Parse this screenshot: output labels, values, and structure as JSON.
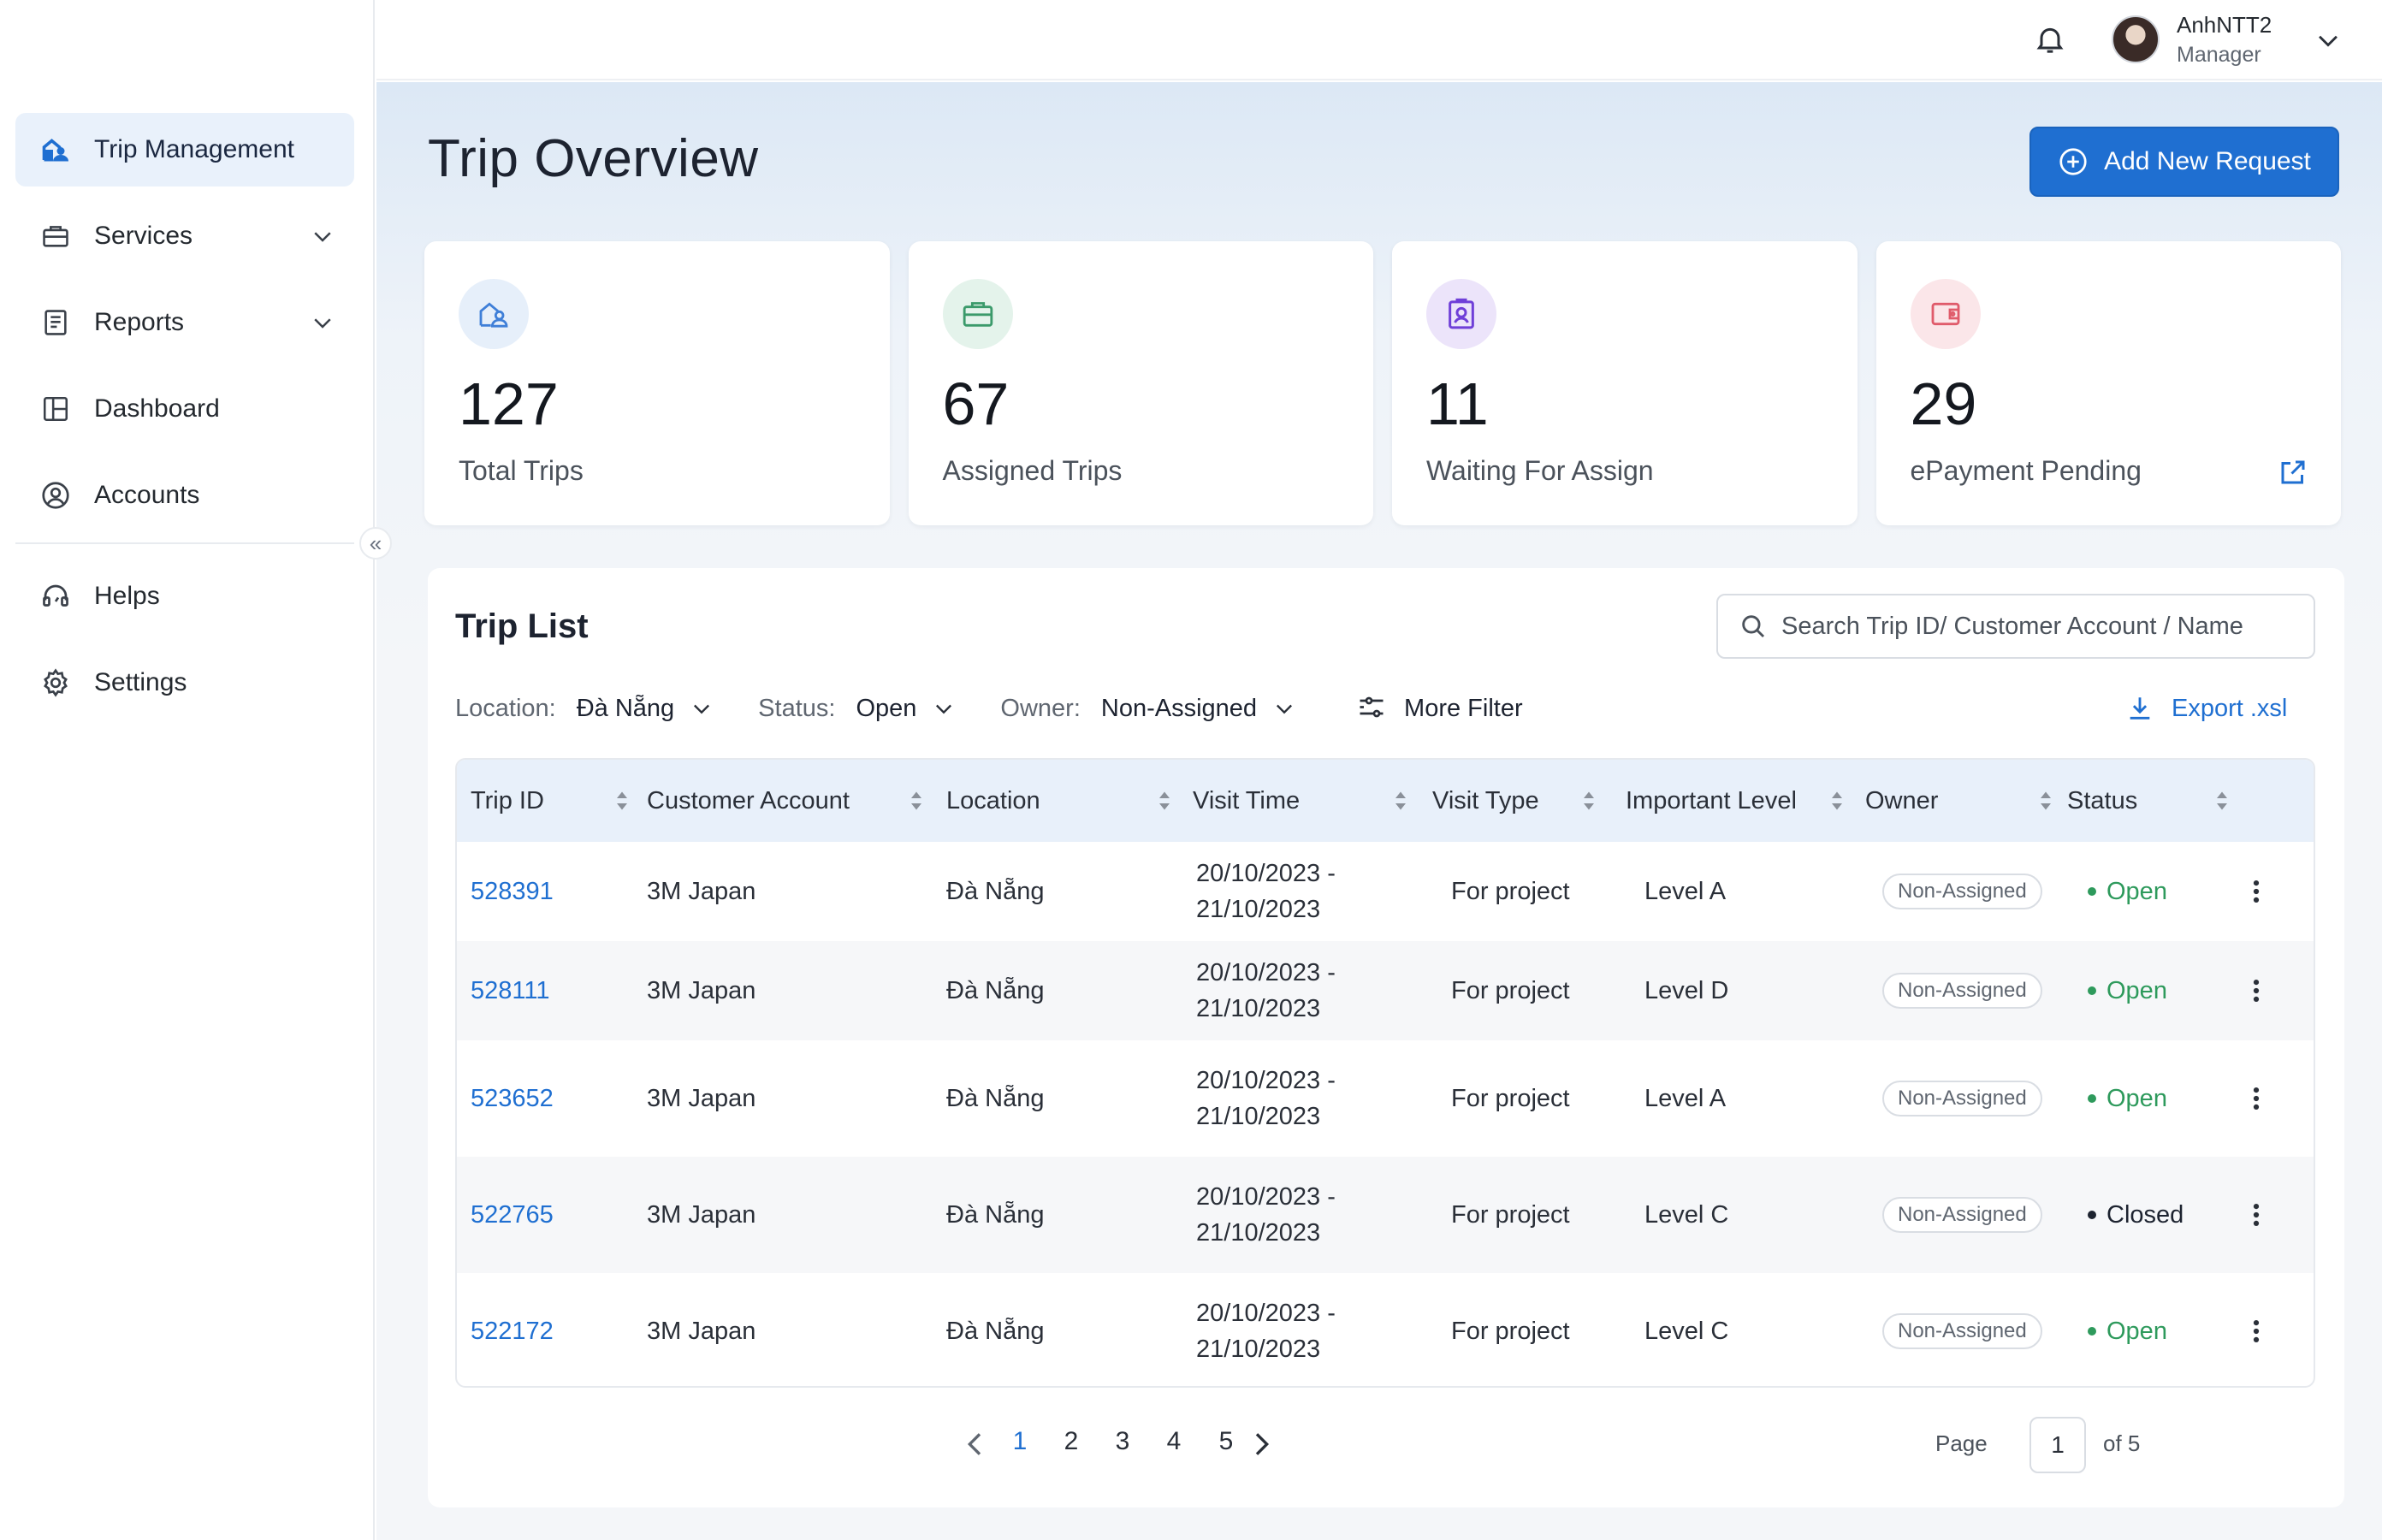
{
  "sidebar": {
    "items": [
      {
        "label": "Trip Management",
        "icon": "trip-icon",
        "active": true
      },
      {
        "label": "Services",
        "icon": "briefcase-icon",
        "expandable": true
      },
      {
        "label": "Reports",
        "icon": "report-icon",
        "expandable": true
      },
      {
        "label": "Dashboard",
        "icon": "dashboard-icon"
      },
      {
        "label": "Accounts",
        "icon": "account-icon"
      }
    ],
    "secondary": [
      {
        "label": "Helps",
        "icon": "headset-icon"
      },
      {
        "label": "Settings",
        "icon": "gear-icon"
      }
    ],
    "collapse_glyph": "«"
  },
  "header": {
    "user_name": "AnhNTT2",
    "user_role": "Manager"
  },
  "page": {
    "title": "Trip Overview",
    "add_button": "Add New Request"
  },
  "stats": [
    {
      "value": "127",
      "label": "Total Trips",
      "color": "#3f7fd8",
      "bg": "#e6effa"
    },
    {
      "value": "67",
      "label": "Assigned Trips",
      "color": "#3b9a6b",
      "bg": "#e4f3eb"
    },
    {
      "value": "11",
      "label": "Waiting For Assign",
      "color": "#6f3fd8",
      "bg": "#ece4fa"
    },
    {
      "value": "29",
      "label": "ePayment Pending",
      "color": "#e05b6b",
      "bg": "#fbe6e9"
    }
  ],
  "trip_list": {
    "title": "Trip List",
    "search_placeholder": "Search Trip ID/ Customer Account / Name",
    "filters": [
      {
        "label": "Location:",
        "value": "Đà Nẵng"
      },
      {
        "label": "Status:",
        "value": "Open"
      },
      {
        "label": "Owner:",
        "value": "Non-Assigned"
      }
    ],
    "more_filter": "More Filter",
    "export": "Export .xsl",
    "columns": [
      "Trip ID",
      "Customer Account",
      "Location",
      "Visit Time",
      "Visit Type",
      "Important Level",
      "Owner",
      "Status"
    ],
    "rows": [
      {
        "id": "528391",
        "customer": "3M Japan",
        "location": "Đà Nẵng",
        "time_from": "20/10/2023 -",
        "time_to": "21/10/2023",
        "type": "For project",
        "level": "Level A",
        "owner": "Non-Assigned",
        "status": "Open"
      },
      {
        "id": "528111",
        "customer": "3M Japan",
        "location": "Đà Nẵng",
        "time_from": "20/10/2023 -",
        "time_to": "21/10/2023",
        "type": "For project",
        "level": "Level D",
        "owner": "Non-Assigned",
        "status": "Open"
      },
      {
        "id": "523652",
        "customer": "3M Japan",
        "location": "Đà Nẵng",
        "time_from": "20/10/2023 -",
        "time_to": "21/10/2023",
        "type": "For project",
        "level": "Level A",
        "owner": "Non-Assigned",
        "status": "Open"
      },
      {
        "id": "522765",
        "customer": "3M Japan",
        "location": "Đà Nẵng",
        "time_from": "20/10/2023 -",
        "time_to": "21/10/2023",
        "type": "For project",
        "level": "Level C",
        "owner": "Non-Assigned",
        "status": "Closed"
      },
      {
        "id": "522172",
        "customer": "3M Japan",
        "location": "Đà Nẵng",
        "time_from": "20/10/2023 -",
        "time_to": "21/10/2023",
        "type": "For project",
        "level": "Level C",
        "owner": "Non-Assigned",
        "status": "Open"
      }
    ],
    "status_colors": {
      "Open": "#2e9a5c",
      "Closed": "#1d2330"
    }
  },
  "pagination": {
    "pages": [
      "1",
      "2",
      "3",
      "4",
      "5"
    ],
    "current": "1",
    "page_label": "Page",
    "page_value": "1",
    "of_label": "of 5"
  }
}
